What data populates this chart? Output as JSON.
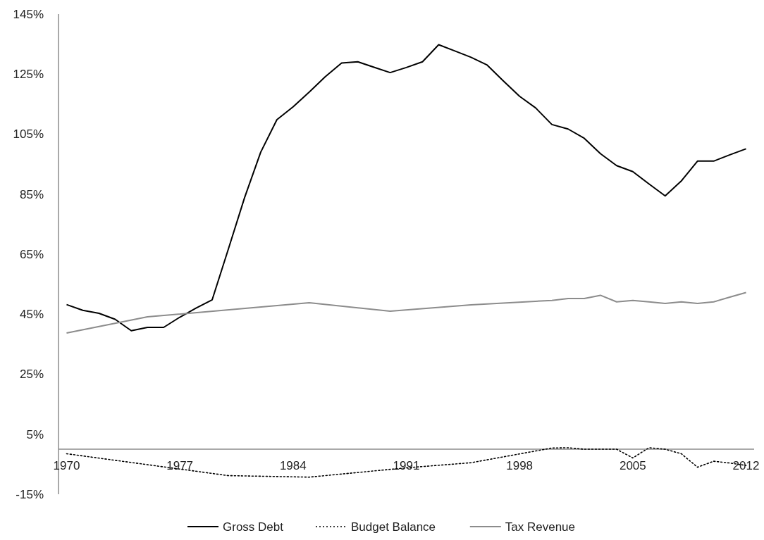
{
  "chart_data": {
    "type": "line",
    "x": [
      1970,
      1971,
      1972,
      1973,
      1974,
      1975,
      1976,
      1977,
      1978,
      1979,
      1980,
      1981,
      1982,
      1983,
      1984,
      1985,
      1986,
      1987,
      1988,
      1989,
      1990,
      1991,
      1992,
      1993,
      1994,
      1995,
      1996,
      1997,
      1998,
      1999,
      2000,
      2001,
      2002,
      2003,
      2004,
      2005,
      2006,
      2007,
      2008,
      2009,
      2010,
      2011,
      2012
    ],
    "series": [
      {
        "name": "Gross Debt",
        "color": "#000000",
        "line_style": "solid",
        "values": [
          48.2,
          46.3,
          45.3,
          43.3,
          39.5,
          40.6,
          40.6,
          44.0,
          47.0,
          49.8,
          66.7,
          83.8,
          99.0,
          109.8,
          114.1,
          119.0,
          124.2,
          128.7,
          129.1,
          127.3,
          125.5,
          127.2,
          129.1,
          134.8,
          132.7,
          130.6,
          128.0,
          122.7,
          117.6,
          113.7,
          108.2,
          106.7,
          103.6,
          98.5,
          94.5,
          92.5,
          88.4,
          84.4,
          89.4,
          96.0,
          96.0,
          98.1,
          100.1
        ]
      },
      {
        "name": "Budget Balance",
        "color": "#000000",
        "line_style": "dotted",
        "x": [
          1970,
          1980,
          1985,
          1991,
          1995,
          2000,
          2001,
          2002,
          2003,
          2004,
          2005,
          2006,
          2007,
          2008,
          2009,
          2010,
          2011,
          2012
        ],
        "values": [
          -1.5,
          -8.8,
          -9.3,
          -6.2,
          -4.5,
          0.4,
          0.5,
          0,
          0,
          0,
          -2.9,
          0.5,
          0,
          -1.5,
          -6.0,
          -4.0,
          -4.6,
          -5.4
        ]
      },
      {
        "name": "Tax Revenue",
        "color": "#8c8c8c",
        "line_style": "solid",
        "x": [
          1970,
          1975,
          1985,
          1990,
          1995,
          2000,
          2001,
          2002,
          2003,
          2004,
          2005,
          2006,
          2007,
          2008,
          2009,
          2010,
          2011,
          2012
        ],
        "values": [
          38.7,
          44.1,
          48.8,
          46.0,
          48.1,
          49.6,
          50.2,
          50.2,
          51.3,
          49.1,
          49.6,
          49.1,
          48.6,
          49.1,
          48.6,
          49.1,
          50.7,
          52.2
        ]
      }
    ],
    "xlim": [
      1969.5,
      2012.5
    ],
    "xticks": [
      1970,
      1977,
      1984,
      1991,
      1998,
      2005,
      2012
    ],
    "ylim": [
      -15,
      145
    ],
    "yticks": [
      {
        "value": -15,
        "label": "-15%"
      },
      {
        "value": 5,
        "label": "5%"
      },
      {
        "value": 25,
        "label": "25%"
      },
      {
        "value": 45,
        "label": "45%"
      },
      {
        "value": 65,
        "label": "65%"
      },
      {
        "value": 85,
        "label": "85%"
      },
      {
        "value": 105,
        "label": "105%"
      },
      {
        "value": 125,
        "label": "125%"
      },
      {
        "value": 145,
        "label": "145%"
      }
    ],
    "grid": false,
    "legend": "bottom",
    "marker": "none"
  }
}
